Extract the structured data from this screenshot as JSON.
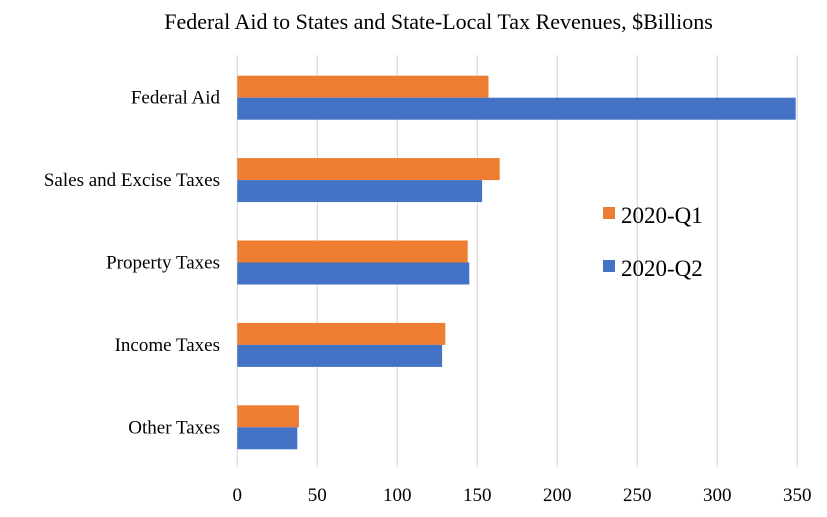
{
  "chart_data": {
    "type": "bar",
    "orientation": "horizontal",
    "title": "Federal Aid to States and State-Local Tax Revenues, $Billions",
    "xlabel": "",
    "ylabel": "",
    "xlim": [
      0,
      350
    ],
    "x_ticks": [
      0,
      50,
      100,
      150,
      200,
      250,
      300,
      350
    ],
    "x_tick_labels": [
      "0",
      "50",
      "100",
      "150",
      "200",
      "250",
      "300",
      "350"
    ],
    "grid": "vertical",
    "legend_position": "right",
    "categories": [
      "Federal Aid",
      "Sales and Excise Taxes",
      "Property Taxes",
      "Income Taxes",
      "Other Taxes"
    ],
    "series": [
      {
        "name": "2020-Q1",
        "color": "#ED7D31",
        "values": [
          157,
          164,
          144,
          130,
          38.5
        ]
      },
      {
        "name": "2020-Q2",
        "color": "#4472C4",
        "values": [
          349,
          153,
          145,
          128,
          37.5
        ]
      }
    ]
  }
}
